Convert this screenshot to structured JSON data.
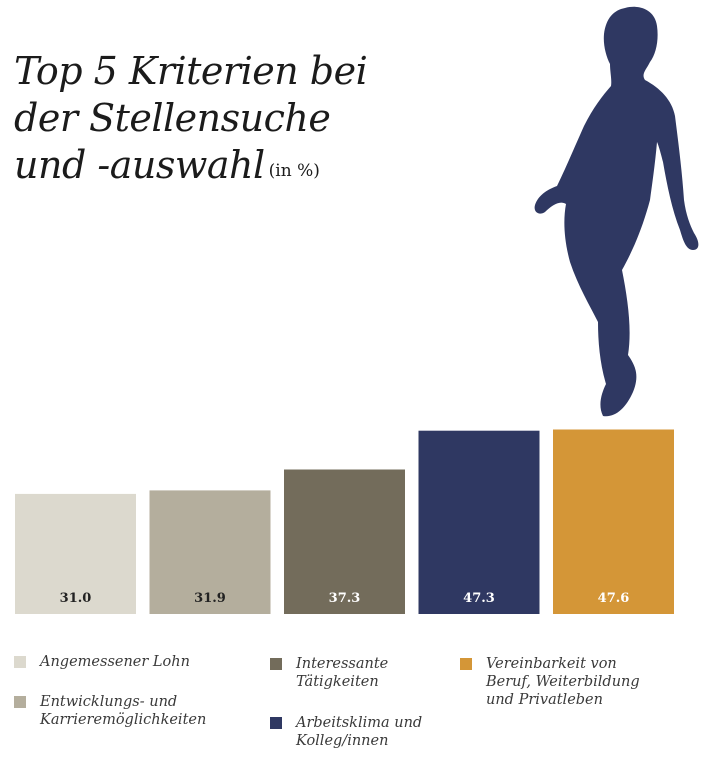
{
  "title_lines": [
    "Top 5 Kriterien bei",
    "der Stellensuche",
    "und -auswahl"
  ],
  "unit": "(in %)",
  "chart_data": {
    "type": "bar",
    "categories": [
      "Angemessener Lohn",
      "Entwicklungs- und Karrieremöglichkeiten",
      "Interessante Tätigkeiten",
      "Arbeitsklima und Kolleg/innen",
      "Vereinbarkeit von Beruf, Weiterbildung und Privatleben"
    ],
    "values": [
      31.0,
      31.9,
      37.3,
      47.3,
      47.6
    ],
    "value_labels": [
      "31.0",
      "31.9",
      "37.3",
      "47.3",
      "47.6"
    ],
    "colors": [
      "#dcd9ce",
      "#b4ae9d",
      "#736c5b",
      "#2f3862",
      "#d49637"
    ],
    "label_colors": [
      "#222222",
      "#222222",
      "#ffffff",
      "#ffffff",
      "#ffffff"
    ],
    "title": "Top 5 Kriterien bei der Stellensuche und -auswahl (in %)",
    "xlabel": "",
    "ylabel": "",
    "grid": false,
    "legend_position": "bottom"
  },
  "legend": [
    {
      "label": "Angemessener Lohn",
      "color": "#dcd9ce"
    },
    {
      "label": "Entwicklungs- und\nKarrieremöglichkeiten",
      "color": "#b4ae9d"
    },
    {
      "label": "Interessante\nTätigkeiten",
      "color": "#736c5b"
    },
    {
      "label": "Arbeitsklima und\nKolleg/innen",
      "color": "#2f3862"
    },
    {
      "label": "Vereinbarkeit von\nBeruf, Weiterbildung\nund Privatleben",
      "color": "#d49637"
    }
  ],
  "figure_icon": "walking-person-silhouette-icon",
  "figure_color": "#2f3862"
}
